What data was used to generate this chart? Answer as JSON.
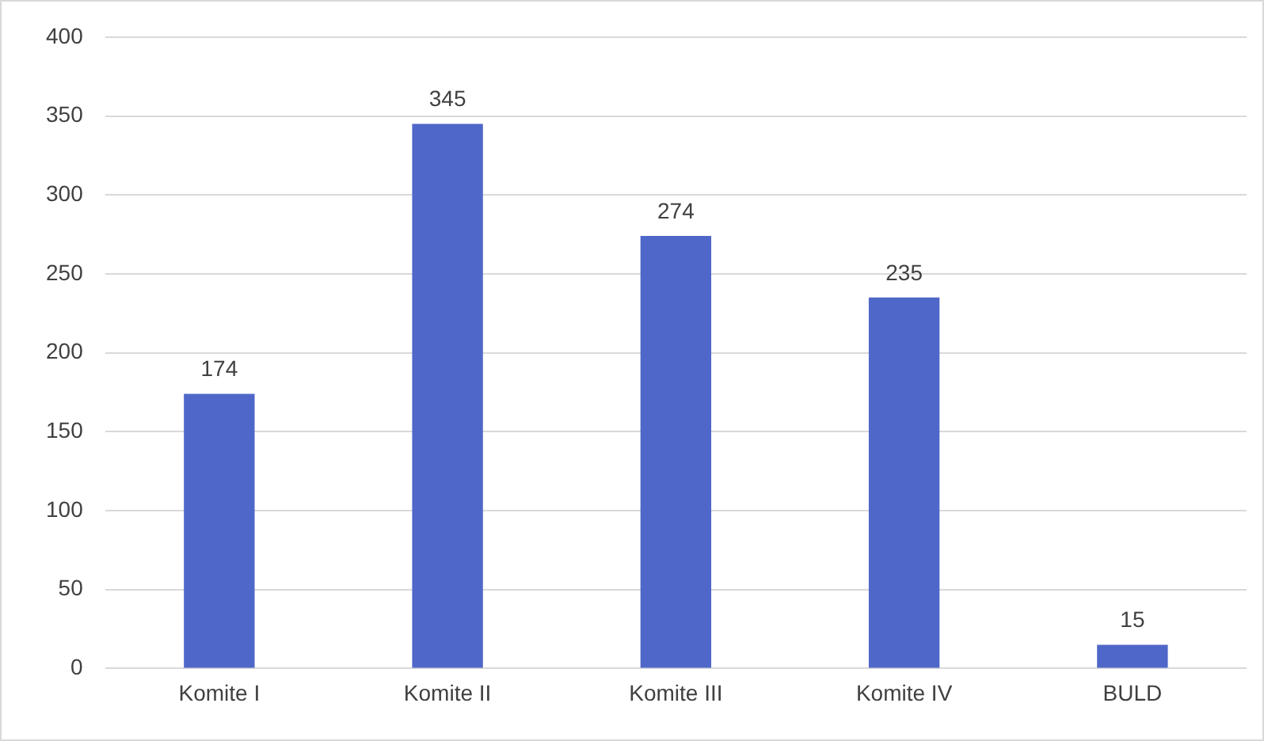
{
  "chart_data": {
    "type": "bar",
    "categories": [
      "Komite I",
      "Komite II",
      "Komite III",
      "Komite IV",
      "BULD"
    ],
    "values": [
      174,
      345,
      274,
      235,
      15
    ],
    "color": "#4f67c8",
    "ylim": [
      0,
      400
    ],
    "yticks": [
      0,
      50,
      100,
      150,
      200,
      250,
      300,
      350,
      400
    ],
    "grid": "y",
    "data_labels": true,
    "legend": false
  }
}
